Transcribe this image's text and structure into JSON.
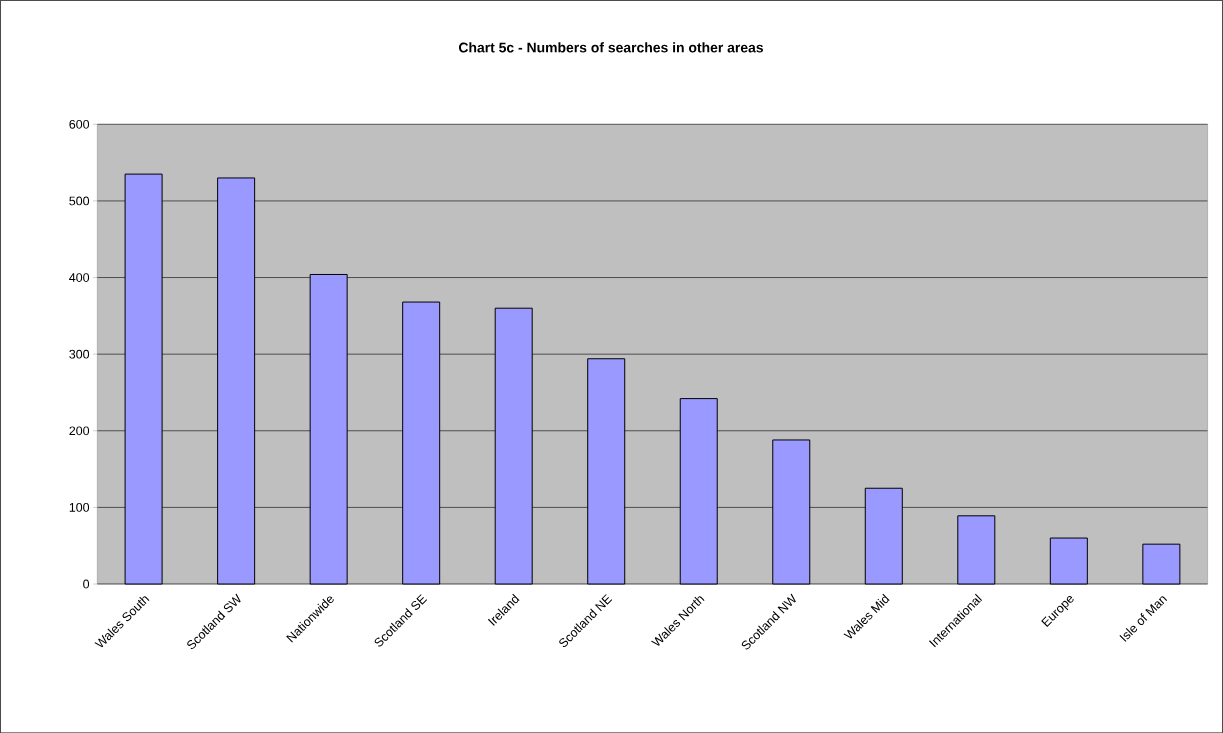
{
  "chart_data": {
    "type": "bar",
    "title": "Chart 5c - Numbers of searches in other areas",
    "categories": [
      "Wales South",
      "Scotland SW",
      "Nationwide",
      "Scotland SE",
      "Ireland",
      "Scotland NE",
      "Wales North",
      "Scotland NW",
      "Wales Mid",
      "International",
      "Europe",
      "Isle of Man"
    ],
    "values": [
      535,
      530,
      404,
      368,
      360,
      294,
      242,
      188,
      125,
      89,
      60,
      52
    ],
    "color": "#9999ff",
    "ylim": [
      0,
      600
    ],
    "yticks": [
      0,
      100,
      200,
      300,
      400,
      500,
      600
    ],
    "grid": "y"
  }
}
